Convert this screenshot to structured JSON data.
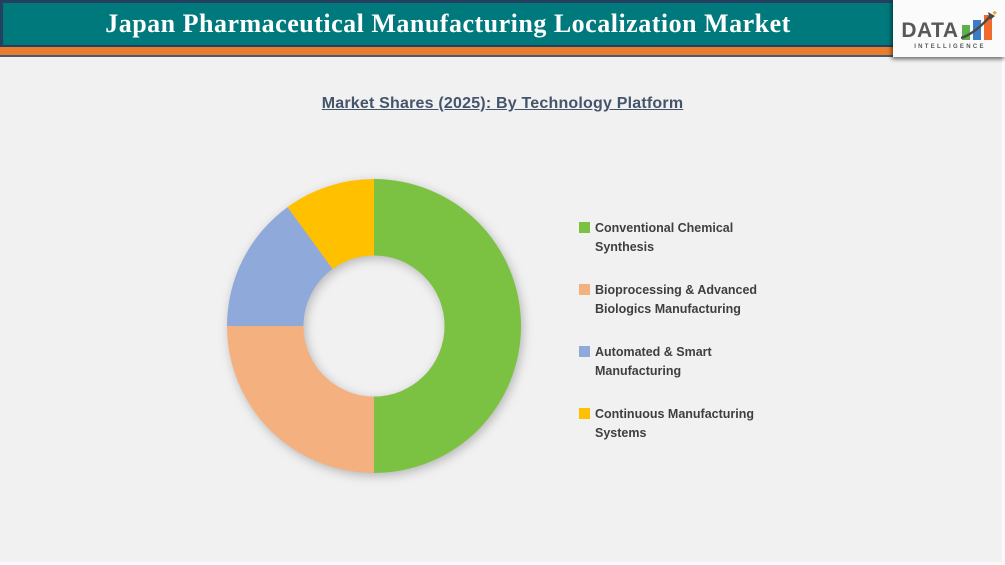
{
  "header": {
    "title": "Japan Pharmaceutical Manufacturing Localization Market"
  },
  "logo": {
    "brand": "DATA",
    "tagline": "INTELLIGENCE"
  },
  "chart_data": {
    "type": "pie",
    "subtype": "donut",
    "title": "Market Shares (2025): By Technology Platform",
    "categories": [
      "Conventional Chemical Synthesis",
      "Bioprocessing & Advanced Biologics Manufacturing",
      "Automated & Smart Manufacturing",
      "Continuous Manufacturing Systems"
    ],
    "values": [
      50,
      25,
      15,
      10
    ],
    "unit": "percent-of-total (estimated from arc angles)",
    "colors": [
      "#7CC242",
      "#F4B07E",
      "#8FA9DB",
      "#FFC000"
    ],
    "start_angle_deg": 0,
    "direction": "clockwise",
    "inner_radius_ratio": 0.48,
    "legend_position": "right",
    "data_labels": "none"
  },
  "theme_colors": {
    "header_bg": "#00797D",
    "accent_stripe": "#E87E2D",
    "border_navy": "#24405E",
    "page_bg": "#F1F1F1",
    "chart_title_color": "#44546A",
    "legend_text_color": "#3F3F3F",
    "logo_bar_green": "#5BB14B",
    "logo_bar_blue": "#3B7CC4",
    "logo_bar_orange": "#F2692E"
  }
}
